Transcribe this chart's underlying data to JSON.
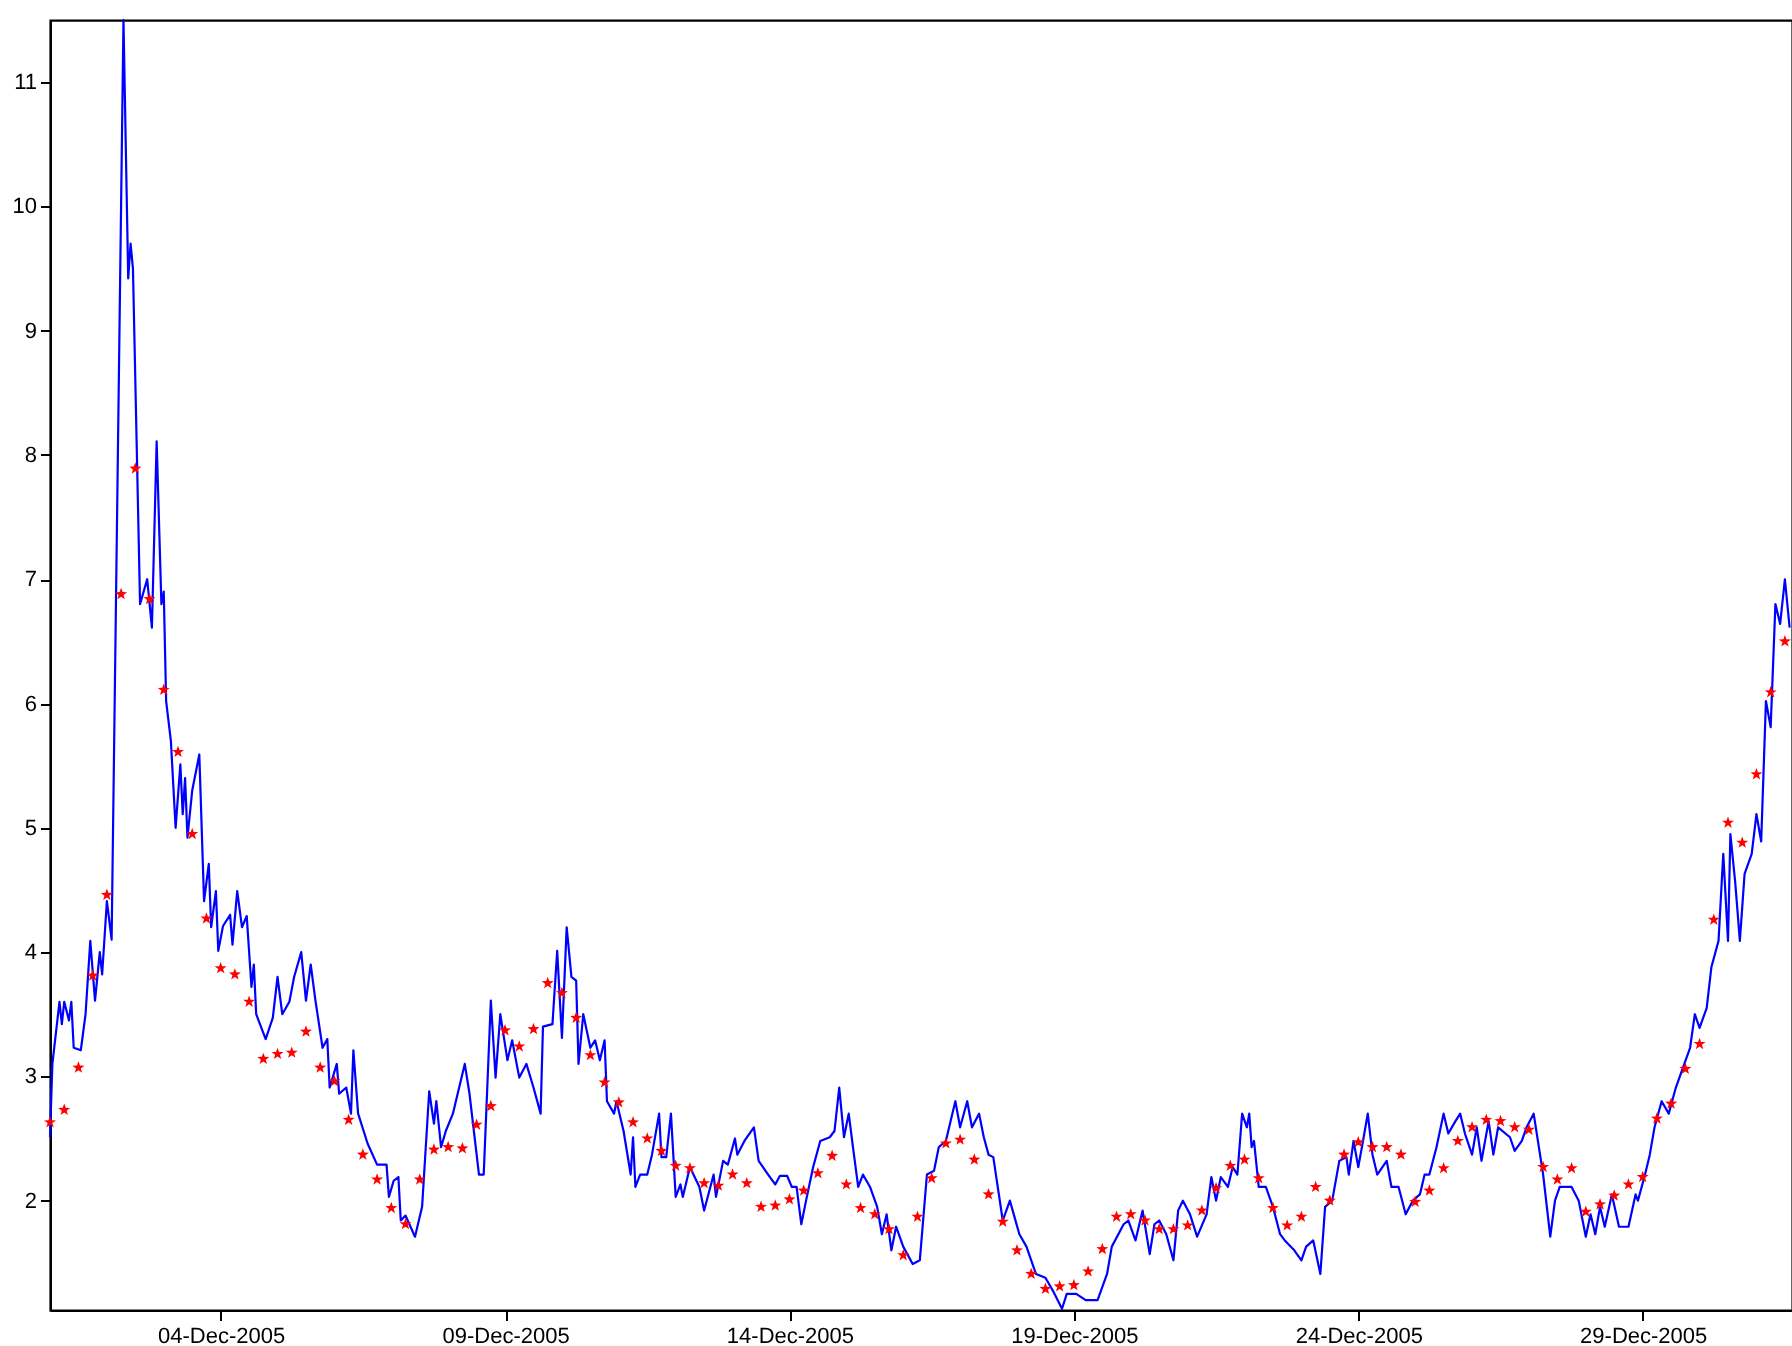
{
  "chart_data": {
    "type": "line",
    "xlim": [
      "2005-12-01T00:00",
      "2005-12-31T15:00"
    ],
    "xticks": [
      {
        "value": "2005-12-04",
        "label": "04-Dec-2005"
      },
      {
        "value": "2005-12-09",
        "label": "09-Dec-2005"
      },
      {
        "value": "2005-12-14",
        "label": "14-Dec-2005"
      },
      {
        "value": "2005-12-19",
        "label": "19-Dec-2005"
      },
      {
        "value": "2005-12-24",
        "label": "24-Dec-2005"
      },
      {
        "value": "2005-12-29",
        "label": "29-Dec-2005"
      }
    ],
    "ylim": [
      1.12,
      11.5
    ],
    "yticks": [
      2,
      3,
      4,
      5,
      6,
      7,
      8,
      9,
      10,
      11
    ],
    "series": [
      {
        "color": "#0000ff",
        "marker": "none",
        "x": [
          "2005-12-01T00:00",
          "2005-12-01T01:00",
          "2005-12-01T04:00",
          "2005-12-01T05:00",
          "2005-12-01T06:00",
          "2005-12-01T08:00",
          "2005-12-01T09:00",
          "2005-12-01T10:00",
          "2005-12-01T13:00",
          "2005-12-01T15:00",
          "2005-12-01T17:00",
          "2005-12-01T19:00",
          "2005-12-01T21:00",
          "2005-12-01T22:00",
          "2005-12-02T00:00",
          "2005-12-02T02:00",
          "2005-12-02T07:00",
          "2005-12-02T09:00",
          "2005-12-02T10:00",
          "2005-12-02T11:00",
          "2005-12-02T14:00",
          "2005-12-02T17:00",
          "2005-12-02T19:00",
          "2005-12-02T21:00",
          "2005-12-02T23:00",
          "2005-12-03T00:00",
          "2005-12-03T01:00",
          "2005-12-03T03:00",
          "2005-12-03T05:00",
          "2005-12-03T07:00",
          "2005-12-03T08:00",
          "2005-12-03T09:00",
          "2005-12-03T10:00",
          "2005-12-03T12:00",
          "2005-12-03T15:00",
          "2005-12-03T17:00",
          "2005-12-03T19:00",
          "2005-12-03T20:00",
          "2005-12-03T22:00",
          "2005-12-03T23:00",
          "2005-12-04T01:00",
          "2005-12-04T04:00",
          "2005-12-04T05:00",
          "2005-12-04T07:00",
          "2005-12-04T09:00",
          "2005-12-04T11:00",
          "2005-12-04T13:00",
          "2005-12-04T14:00",
          "2005-12-04T15:00",
          "2005-12-04T19:00",
          "2005-12-04T22:00",
          "2005-12-05T00:00",
          "2005-12-05T02:00",
          "2005-12-05T05:00",
          "2005-12-05T07:00",
          "2005-12-05T10:00",
          "2005-12-05T12:00",
          "2005-12-05T14:00",
          "2005-12-05T16:00",
          "2005-12-05T19:00",
          "2005-12-05T21:00",
          "2005-12-05T22:00",
          "2005-12-06T01:00",
          "2005-12-06T02:00",
          "2005-12-06T05:00",
          "2005-12-06T07:00",
          "2005-12-06T08:00",
          "2005-12-06T10:00",
          "2005-12-06T14:00",
          "2005-12-06T18:00",
          "2005-12-06T22:00",
          "2005-12-06T23:00",
          "2005-12-07T01:00",
          "2005-12-07T03:00",
          "2005-12-07T04:00",
          "2005-12-07T06:00",
          "2005-12-07T10:00",
          "2005-12-07T13:00",
          "2005-12-07T16:00",
          "2005-12-07T18:00",
          "2005-12-07T19:00",
          "2005-12-07T21:00",
          "2005-12-07T23:00",
          "2005-12-08T02:00",
          "2005-12-08T03:00",
          "2005-12-08T07:00",
          "2005-12-08T09:00",
          "2005-12-08T13:00",
          "2005-12-08T15:00",
          "2005-12-08T18:00",
          "2005-12-08T20:00",
          "2005-12-08T22:00",
          "2005-12-09T01:00",
          "2005-12-09T03:00",
          "2005-12-09T06:00",
          "2005-12-09T09:00",
          "2005-12-09T12:00",
          "2005-12-09T15:00",
          "2005-12-09T16:00",
          "2005-12-09T20:00",
          "2005-12-09T22:00",
          "2005-12-10T00:00",
          "2005-12-10T02:00",
          "2005-12-10T04:00",
          "2005-12-10T06:00",
          "2005-12-10T07:00",
          "2005-12-10T09:00",
          "2005-12-10T12:00",
          "2005-12-10T14:00",
          "2005-12-10T16:00",
          "2005-12-10T18:00",
          "2005-12-10T19:00",
          "2005-12-10T22:00",
          "2005-12-10T23:00",
          "2005-12-11T02:00",
          "2005-12-11T05:00",
          "2005-12-11T06:00",
          "2005-12-11T07:00",
          "2005-12-11T09:00",
          "2005-12-11T12:00",
          "2005-12-11T14:00",
          "2005-12-11T17:00",
          "2005-12-11T18:00",
          "2005-12-11T20:00",
          "2005-12-11T22:00",
          "2005-12-12T00:00",
          "2005-12-12T02:00",
          "2005-12-12T03:00",
          "2005-12-12T06:00",
          "2005-12-12T10:00",
          "2005-12-12T12:00",
          "2005-12-12T16:00",
          "2005-12-12T17:00",
          "2005-12-12T20:00",
          "2005-12-12T22:00",
          "2005-12-13T01:00",
          "2005-12-13T02:00",
          "2005-12-13T05:00",
          "2005-12-13T09:00",
          "2005-12-13T11:00",
          "2005-12-13T15:00",
          "2005-12-13T18:00",
          "2005-12-13T20:00",
          "2005-12-13T23:00",
          "2005-12-14T01:00",
          "2005-12-14T03:00",
          "2005-12-14T05:00",
          "2005-12-14T07:00",
          "2005-12-14T10:00",
          "2005-12-14T13:00",
          "2005-12-14T17:00",
          "2005-12-14T19:00",
          "2005-12-14T21:00",
          "2005-12-14T23:00",
          "2005-12-15T01:00",
          "2005-12-15T03:00",
          "2005-12-15T05:00",
          "2005-12-15T07:00",
          "2005-12-15T10:00",
          "2005-12-15T13:00",
          "2005-12-15T15:00",
          "2005-12-15T17:00",
          "2005-12-15T19:00",
          "2005-12-15T21:00",
          "2005-12-16T00:00",
          "2005-12-16T04:00",
          "2005-12-16T07:00",
          "2005-12-16T10:00",
          "2005-12-16T13:00",
          "2005-12-16T15:00",
          "2005-12-16T18:00",
          "2005-12-16T20:00",
          "2005-12-16T22:00",
          "2005-12-17T00:00",
          "2005-12-17T03:00",
          "2005-12-17T05:00",
          "2005-12-17T08:00",
          "2005-12-17T10:00",
          "2005-12-17T12:00",
          "2005-12-17T14:00",
          "2005-12-17T18:00",
          "2005-12-17T21:00",
          "2005-12-18T01:00",
          "2005-12-18T04:00",
          "2005-12-18T08:00",
          "2005-12-18T12:00",
          "2005-12-18T15:00",
          "2005-12-18T19:00",
          "2005-12-18T21:00",
          "2005-12-19T01:00",
          "2005-12-19T05:00",
          "2005-12-19T10:00",
          "2005-12-19T14:00",
          "2005-12-19T16:00",
          "2005-12-19T21:00",
          "2005-12-19T23:00",
          "2005-12-20T02:00",
          "2005-12-20T05:00",
          "2005-12-20T08:00",
          "2005-12-20T10:00",
          "2005-12-20T12:00",
          "2005-12-20T15:00",
          "2005-12-20T18:00",
          "2005-12-20T20:00",
          "2005-12-20T22:00",
          "2005-12-21T01:00",
          "2005-12-21T04:00",
          "2005-12-21T08:00",
          "2005-12-21T10:00",
          "2005-12-21T12:00",
          "2005-12-21T14:00",
          "2005-12-21T17:00",
          "2005-12-21T19:00",
          "2005-12-21T21:00",
          "2005-12-21T23:00",
          "2005-12-22T01:00",
          "2005-12-22T02:00",
          "2005-12-22T03:00",
          "2005-12-22T04:00",
          "2005-12-22T06:00",
          "2005-12-22T09:00",
          "2005-12-22T12:00",
          "2005-12-22T15:00",
          "2005-12-22T17:00",
          "2005-12-22T21:00",
          "2005-12-23T00:00",
          "2005-12-23T02:00",
          "2005-12-23T05:00",
          "2005-12-23T08:00",
          "2005-12-23T10:00",
          "2005-12-23T13:00",
          "2005-12-23T16:00",
          "2005-12-23T19:00",
          "2005-12-23T20:00",
          "2005-12-23T22:00",
          "2005-12-24T00:00",
          "2005-12-24T02:00",
          "2005-12-24T04:00",
          "2005-12-24T06:00",
          "2005-12-24T08:00",
          "2005-12-24T12:00",
          "2005-12-24T14:00",
          "2005-12-24T17:00",
          "2005-12-24T20:00",
          "2005-12-24T23:00",
          "2005-12-25T02:00",
          "2005-12-25T04:00",
          "2005-12-25T06:00",
          "2005-12-25T09:00",
          "2005-12-25T12:00",
          "2005-12-25T14:00",
          "2005-12-25T17:00",
          "2005-12-25T19:00",
          "2005-12-25T21:00",
          "2005-12-26T00:00",
          "2005-12-26T02:00",
          "2005-12-26T04:00",
          "2005-12-26T07:00",
          "2005-12-26T09:00",
          "2005-12-26T11:00",
          "2005-12-26T16:00",
          "2005-12-26T18:00",
          "2005-12-26T21:00",
          "2005-12-26T23:00",
          "2005-12-27T02:00",
          "2005-12-27T06:00",
          "2005-12-27T09:00",
          "2005-12-27T11:00",
          "2005-12-27T13:00",
          "2005-12-27T18:00",
          "2005-12-27T21:00",
          "2005-12-28T00:00",
          "2005-12-28T02:00",
          "2005-12-28T04:00",
          "2005-12-28T06:00",
          "2005-12-28T08:00",
          "2005-12-28T11:00",
          "2005-12-28T14:00",
          "2005-12-28T18:00",
          "2005-12-28T21:00",
          "2005-12-28T22:00",
          "2005-12-29T01:00",
          "2005-12-29T03:00",
          "2005-12-29T05:00",
          "2005-12-29T08:00",
          "2005-12-29T11:00",
          "2005-12-29T14:00",
          "2005-12-29T17:00",
          "2005-12-29T20:00",
          "2005-12-29T22:00",
          "2005-12-30T00:00",
          "2005-12-30T03:00",
          "2005-12-30T05:00",
          "2005-12-30T08:00",
          "2005-12-30T10:00",
          "2005-12-30T12:00",
          "2005-12-30T13:00",
          "2005-12-30T15:00",
          "2005-12-30T17:00",
          "2005-12-30T19:00",
          "2005-12-30T22:00",
          "2005-12-31T00:00",
          "2005-12-31T02:00",
          "2005-12-31T04:00",
          "2005-12-31T06:00",
          "2005-12-31T08:00",
          "2005-12-31T10:00",
          "2005-12-31T12:00",
          "2005-12-31T14:00"
        ],
        "values": [
          2.51,
          3.1,
          3.6,
          3.42,
          3.6,
          3.45,
          3.6,
          3.23,
          3.21,
          3.5,
          4.09,
          3.61,
          4.0,
          3.82,
          4.41,
          4.1,
          11.5,
          9.42,
          9.7,
          9.5,
          6.8,
          7.0,
          6.61,
          8.11,
          6.8,
          6.9,
          6.02,
          5.7,
          5.0,
          5.51,
          5.11,
          5.4,
          4.92,
          5.3,
          5.59,
          4.41,
          4.71,
          4.2,
          4.49,
          4.01,
          4.21,
          4.3,
          4.06,
          4.49,
          4.2,
          4.29,
          3.72,
          3.9,
          3.5,
          3.3,
          3.47,
          3.8,
          3.5,
          3.6,
          3.8,
          4.0,
          3.61,
          3.9,
          3.61,
          3.23,
          3.3,
          2.91,
          3.1,
          2.86,
          2.91,
          2.7,
          3.21,
          2.7,
          2.46,
          2.29,
          2.29,
          2.03,
          2.16,
          2.19,
          1.84,
          1.88,
          1.71,
          1.95,
          2.88,
          2.62,
          2.8,
          2.43,
          2.56,
          2.7,
          2.78,
          3.1,
          2.86,
          2.21,
          2.21,
          3.61,
          2.99,
          3.5,
          3.13,
          3.29,
          2.99,
          3.1,
          2.91,
          2.7,
          3.4,
          3.42,
          4.01,
          3.31,
          4.2,
          3.8,
          3.77,
          3.1,
          3.5,
          3.23,
          3.29,
          3.13,
          3.29,
          2.8,
          2.7,
          2.8,
          2.56,
          2.21,
          2.51,
          2.11,
          2.21,
          2.21,
          2.37,
          2.7,
          2.35,
          2.35,
          2.7,
          2.03,
          2.13,
          2.03,
          2.27,
          2.11,
          1.92,
          2.21,
          2.03,
          2.32,
          2.29,
          2.5,
          2.37,
          2.48,
          2.59,
          2.32,
          2.21,
          2.13,
          2.2,
          2.2,
          2.11,
          2.11,
          1.81,
          2.0,
          2.27,
          2.48,
          2.51,
          2.56,
          2.91,
          2.51,
          2.7,
          2.4,
          2.11,
          2.21,
          2.11,
          1.95,
          1.73,
          1.89,
          1.6,
          1.79,
          1.63,
          1.49,
          1.52,
          2.21,
          2.24,
          2.43,
          2.48,
          2.64,
          2.8,
          2.59,
          2.8,
          2.59,
          2.7,
          2.51,
          2.37,
          2.35,
          1.84,
          2.0,
          1.73,
          1.63,
          1.41,
          1.38,
          1.28,
          1.13,
          1.25,
          1.25,
          1.2,
          1.2,
          1.41,
          1.63,
          1.81,
          1.84,
          1.68,
          1.92,
          1.57,
          1.81,
          1.84,
          1.73,
          1.52,
          1.92,
          2.0,
          1.89,
          1.71,
          1.89,
          2.19,
          2.0,
          2.19,
          2.11,
          2.27,
          2.21,
          2.7,
          2.59,
          2.7,
          2.43,
          2.48,
          2.11,
          2.11,
          1.95,
          1.73,
          1.68,
          1.6,
          1.52,
          1.63,
          1.68,
          1.41,
          1.95,
          2.0,
          2.32,
          2.35,
          2.21,
          2.48,
          2.27,
          2.48,
          2.7,
          2.37,
          2.21,
          2.32,
          2.11,
          2.11,
          1.89,
          2.0,
          2.05,
          2.21,
          2.21,
          2.43,
          2.7,
          2.54,
          2.64,
          2.7,
          2.54,
          2.37,
          2.59,
          2.32,
          2.64,
          2.37,
          2.59,
          2.51,
          2.4,
          2.48,
          2.59,
          2.7,
          2.21,
          1.71,
          2.0,
          2.11,
          2.11,
          2.0,
          1.71,
          1.89,
          1.73,
          1.95,
          1.79,
          2.05,
          1.79,
          1.79,
          2.05,
          2.0,
          2.21,
          2.37,
          2.59,
          2.8,
          2.7,
          2.91,
          3.07,
          3.23,
          3.5,
          3.39,
          3.55,
          3.88,
          4.09,
          4.79,
          4.09,
          4.95,
          4.57,
          4.09,
          4.63,
          4.79,
          5.11,
          4.89,
          6.02,
          5.81,
          6.8,
          6.64,
          7.0,
          6.61
        ]
      },
      {
        "type": "scatter",
        "color": "#ff0000",
        "marker": "star",
        "x": [
          "2005-12-01T00:00",
          "2005-12-01T06:00",
          "2005-12-01T12:00",
          "2005-12-01T18:00",
          "2005-12-02T00:00",
          "2005-12-02T06:00",
          "2005-12-02T12:00",
          "2005-12-02T18:00",
          "2005-12-03T00:00",
          "2005-12-03T06:00",
          "2005-12-03T12:00",
          "2005-12-03T18:00",
          "2005-12-04T00:00",
          "2005-12-04T06:00",
          "2005-12-04T12:00",
          "2005-12-04T18:00",
          "2005-12-05T00:00",
          "2005-12-05T06:00",
          "2005-12-05T12:00",
          "2005-12-05T18:00",
          "2005-12-06T00:00",
          "2005-12-06T06:00",
          "2005-12-06T12:00",
          "2005-12-06T18:00",
          "2005-12-07T00:00",
          "2005-12-07T06:00",
          "2005-12-07T12:00",
          "2005-12-07T18:00",
          "2005-12-08T00:00",
          "2005-12-08T06:00",
          "2005-12-08T12:00",
          "2005-12-08T18:00",
          "2005-12-09T00:00",
          "2005-12-09T06:00",
          "2005-12-09T12:00",
          "2005-12-09T18:00",
          "2005-12-10T00:00",
          "2005-12-10T06:00",
          "2005-12-10T12:00",
          "2005-12-10T18:00",
          "2005-12-11T00:00",
          "2005-12-11T06:00",
          "2005-12-11T12:00",
          "2005-12-11T18:00",
          "2005-12-12T00:00",
          "2005-12-12T06:00",
          "2005-12-12T12:00",
          "2005-12-12T18:00",
          "2005-12-13T00:00",
          "2005-12-13T06:00",
          "2005-12-13T12:00",
          "2005-12-13T18:00",
          "2005-12-14T00:00",
          "2005-12-14T06:00",
          "2005-12-14T12:00",
          "2005-12-14T18:00",
          "2005-12-15T00:00",
          "2005-12-15T06:00",
          "2005-12-15T12:00",
          "2005-12-15T18:00",
          "2005-12-16T00:00",
          "2005-12-16T06:00",
          "2005-12-16T12:00",
          "2005-12-16T18:00",
          "2005-12-17T00:00",
          "2005-12-17T06:00",
          "2005-12-17T12:00",
          "2005-12-17T18:00",
          "2005-12-18T00:00",
          "2005-12-18T06:00",
          "2005-12-18T12:00",
          "2005-12-18T18:00",
          "2005-12-19T00:00",
          "2005-12-19T06:00",
          "2005-12-19T12:00",
          "2005-12-19T18:00",
          "2005-12-20T00:00",
          "2005-12-20T06:00",
          "2005-12-20T12:00",
          "2005-12-20T18:00",
          "2005-12-21T00:00",
          "2005-12-21T06:00",
          "2005-12-21T12:00",
          "2005-12-21T18:00",
          "2005-12-22T00:00",
          "2005-12-22T06:00",
          "2005-12-22T12:00",
          "2005-12-22T18:00",
          "2005-12-23T00:00",
          "2005-12-23T06:00",
          "2005-12-23T12:00",
          "2005-12-23T18:00",
          "2005-12-24T00:00",
          "2005-12-24T06:00",
          "2005-12-24T12:00",
          "2005-12-24T18:00",
          "2005-12-25T00:00",
          "2005-12-25T06:00",
          "2005-12-25T12:00",
          "2005-12-25T18:00",
          "2005-12-26T00:00",
          "2005-12-26T06:00",
          "2005-12-26T12:00",
          "2005-12-26T18:00",
          "2005-12-27T00:00",
          "2005-12-27T06:00",
          "2005-12-27T12:00",
          "2005-12-27T18:00",
          "2005-12-28T00:00",
          "2005-12-28T06:00",
          "2005-12-28T12:00",
          "2005-12-28T18:00",
          "2005-12-29T00:00",
          "2005-12-29T06:00",
          "2005-12-29T12:00",
          "2005-12-29T18:00",
          "2005-12-30T00:00",
          "2005-12-30T06:00",
          "2005-12-30T12:00",
          "2005-12-30T18:00",
          "2005-12-31T00:00",
          "2005-12-31T06:00",
          "2005-12-31T12:00"
        ],
        "values": [
          2.63,
          2.73,
          3.07,
          3.81,
          4.46,
          6.88,
          7.89,
          6.84,
          6.11,
          5.61,
          4.95,
          4.27,
          3.87,
          3.82,
          3.6,
          3.14,
          3.18,
          3.19,
          3.36,
          3.07,
          2.96,
          2.65,
          2.37,
          2.17,
          1.94,
          1.81,
          2.17,
          2.41,
          2.43,
          2.42,
          2.61,
          2.76,
          3.37,
          3.24,
          3.38,
          3.75,
          3.67,
          3.47,
          3.17,
          2.95,
          2.79,
          2.63,
          2.5,
          2.4,
          2.28,
          2.26,
          2.14,
          2.12,
          2.21,
          2.14,
          1.95,
          1.96,
          2.01,
          2.08,
          2.22,
          2.36,
          2.13,
          1.94,
          1.89,
          1.77,
          1.56,
          1.87,
          2.18,
          2.46,
          2.49,
          2.33,
          2.05,
          1.83,
          1.6,
          1.41,
          1.29,
          1.31,
          1.32,
          1.43,
          1.61,
          1.87,
          1.89,
          1.84,
          1.77,
          1.77,
          1.8,
          1.92,
          2.1,
          2.28,
          2.33,
          2.18,
          1.94,
          1.8,
          1.87,
          2.11,
          2.0,
          2.37,
          2.47,
          2.43,
          2.43,
          2.37,
          1.99,
          2.08,
          2.26,
          2.48,
          2.59,
          2.65,
          2.64,
          2.59,
          2.57,
          2.27,
          2.17,
          2.26,
          1.91,
          1.97,
          2.04,
          2.13,
          2.19,
          2.66,
          2.78,
          3.06,
          3.26,
          4.26,
          5.04,
          4.88,
          5.43,
          6.09,
          6.5
        ]
      }
    ]
  }
}
